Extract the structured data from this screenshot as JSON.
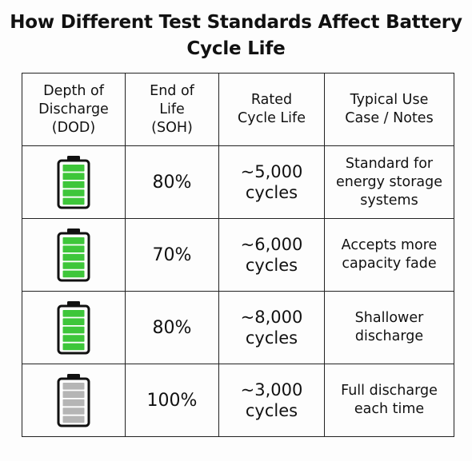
{
  "title": "How Different Test Standards Affect Battery\nCycle Life",
  "table": {
    "headers": [
      "Depth of\nDischarge\n(DOD)",
      "End of\nLife\n(SOH)",
      "Rated\nCycle Life",
      "Typical Use\nCase / Notes"
    ],
    "rows": [
      {
        "battery_icon": "battery-full-green-icon",
        "battery_color": "#3ec63a",
        "end_of_life": "80%",
        "cycle_life": "~5,000\ncycles",
        "notes": "Standard for\nenergy storage\nsystems"
      },
      {
        "battery_icon": "battery-full-green-icon",
        "battery_color": "#3ec63a",
        "end_of_life": "70%",
        "cycle_life": "~6,000\ncycles",
        "notes": "Accepts more\ncapacity fade"
      },
      {
        "battery_icon": "battery-full-green-icon",
        "battery_color": "#3ec63a",
        "end_of_life": "80%",
        "cycle_life": "~8,000\ncycles",
        "notes": "Shallower\ndischarge"
      },
      {
        "battery_icon": "battery-full-gray-icon",
        "battery_color": "#b5b5b5",
        "end_of_life": "100%",
        "cycle_life": "~3,000\ncycles",
        "notes": "Full discharge\neach time"
      }
    ]
  }
}
